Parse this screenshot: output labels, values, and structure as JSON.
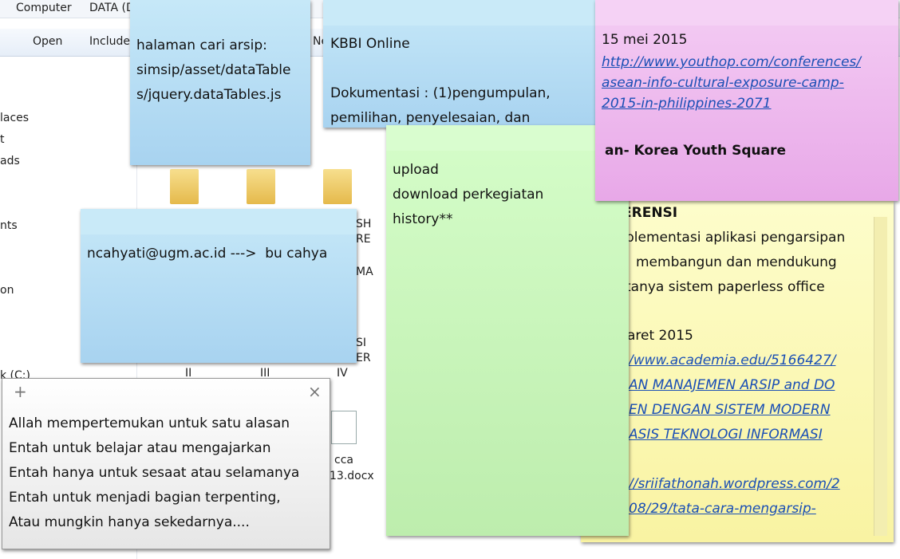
{
  "explorer": {
    "breadcrumb": [
      "Computer",
      "DATA (D"
    ],
    "toolbar": [
      "Open",
      "Include",
      "Ne"
    ],
    "nav": [
      "laces",
      "t",
      "ads",
      "nts",
      "on",
      "k (C:)"
    ],
    "files": [
      "II",
      "III",
      "IV",
      "SH",
      "RE",
      "MA",
      "SI",
      "ER",
      "cca",
      "13.docx"
    ]
  },
  "notes": [
    {
      "lines": [
        "halaman cari arsip:",
        "simsip/asset/dataTable",
        "s/jquery.dataTables.js"
      ]
    },
    {
      "lines": [
        "KBBI Online",
        "Dokumentasi : (1)pengumpulan,",
        "pemilihan, penyelesaian, dan"
      ]
    },
    {
      "lines": [
        "15 mei 2015",
        "http://www.youthop.com/conferences/",
        "asean-info-cultural-exposure-camp-",
        "2015-in-philippines-2071",
        "an- Korea Youth Square"
      ]
    },
    {
      "lines": [
        "upload",
        "download perkegiatan",
        "history**"
      ]
    },
    {
      "lines": [
        "ERENSI",
        "plementasi aplikasi pengarsipan",
        "membangun dan mendukung",
        "tanya sistem paperless office",
        "aret 2015",
        "/www.academia.edu/5166427/",
        "AN MANAJEMEN ARSIP and DO",
        "EN DENGAN SISTEM MODERN",
        "ASIS TEKNOLOGI INFORMASI",
        "//sriifathonah.wordpress.com/2",
        "08/29/tata-cara-mengarsip-"
      ]
    },
    {
      "lines": [
        "ncahyati@ugm.ac.id --->  bu cahya"
      ]
    },
    {
      "lines": [
        "Allah mempertemukan untuk satu alasan",
        "Entah untuk belajar atau mengajarkan",
        "Entah hanya untuk sesaat atau selamanya",
        "Entah untuk menjadi bagian terpenting,",
        "Atau mungkin hanya sekedarnya...."
      ]
    }
  ]
}
